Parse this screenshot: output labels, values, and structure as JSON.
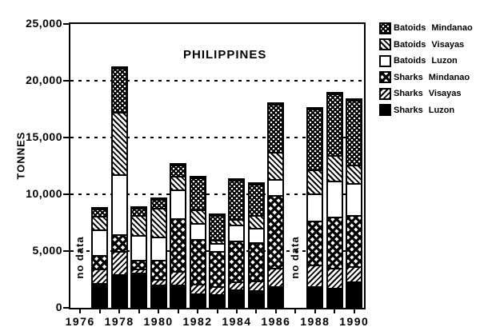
{
  "title": "PHILIPPINES",
  "no_data_label": "no data",
  "y_axis": {
    "label": "TONNES",
    "tick_values": [
      0,
      5000,
      10000,
      15000,
      20000,
      25000
    ],
    "tick_labels": [
      "0",
      "5,000",
      "10,000",
      "15,000",
      "20,000",
      "25,000"
    ],
    "gridline_values": [
      5000,
      10000,
      15000,
      20000
    ]
  },
  "x_axis": {
    "years": [
      "1976",
      "1977",
      "1978",
      "1979",
      "1980",
      "1981",
      "1982",
      "1983",
      "1984",
      "1985",
      "1986",
      "1987",
      "1988",
      "1989",
      "1990"
    ],
    "labeled_years": [
      "1976",
      "1978",
      "1980",
      "1982",
      "1984",
      "1986",
      "1988",
      "1990"
    ]
  },
  "chart_data": {
    "type": "bar",
    "stacked": true,
    "title": "PHILIPPINES",
    "ylabel": "TONNES",
    "ylim": [
      0,
      25000
    ],
    "grid": "dashed-horizontal",
    "legend_position": "top-right",
    "categories": [
      "1976",
      "1977",
      "1978",
      "1979",
      "1980",
      "1981",
      "1982",
      "1983",
      "1984",
      "1985",
      "1986",
      "1987",
      "1988",
      "1989",
      "1990"
    ],
    "no_data_years": [
      "1976",
      "1987"
    ],
    "series_bottom_to_top": [
      {
        "name": "Sharks Luzon",
        "pattern": "solid-black",
        "values": [
          null,
          2250,
          2950,
          3150,
          2100,
          2100,
          1270,
          1200,
          1620,
          1550,
          1900,
          null,
          1900,
          1760,
          2320
        ]
      },
      {
        "name": "Sharks Visayas",
        "pattern": "hatch-slash",
        "values": [
          null,
          1250,
          2100,
          350,
          500,
          1200,
          850,
          700,
          700,
          900,
          1620,
          null,
          1950,
          1760,
          1340
        ]
      },
      {
        "name": "Sharks Mindanao",
        "pattern": "crosshatch",
        "values": [
          null,
          1250,
          1500,
          780,
          1700,
          4650,
          4000,
          3170,
          3660,
          3380,
          6480,
          null,
          3870,
          4580,
          4580
        ]
      },
      {
        "name": "Batoids Luzon",
        "pattern": "white",
        "values": [
          null,
          2250,
          5300,
          2250,
          2050,
          2600,
          1410,
          700,
          1410,
          1340,
          1410,
          null,
          2460,
          3170,
          2820
        ]
      },
      {
        "name": "Batoids Visayas",
        "pattern": "hatch-backslash",
        "values": [
          null,
          1250,
          5550,
          1760,
          2600,
          1200,
          1270,
          350,
          560,
          1130,
          2460,
          null,
          2110,
          2250,
          1620
        ]
      },
      {
        "name": "Batoids Mindanao",
        "pattern": "dots",
        "values": [
          null,
          650,
          3870,
          630,
          780,
          1000,
          2820,
          2180,
          3450,
          2750,
          4230,
          null,
          5420,
          5490,
          5770
        ]
      }
    ],
    "totals": [
      null,
      8900,
      21270,
      8920,
      9730,
      12750,
      11620,
      8300,
      11400,
      11050,
      18100,
      null,
      17710,
      19010,
      18450
    ]
  },
  "colors": {
    "ink": "#000000",
    "paper": "#ffffff"
  }
}
